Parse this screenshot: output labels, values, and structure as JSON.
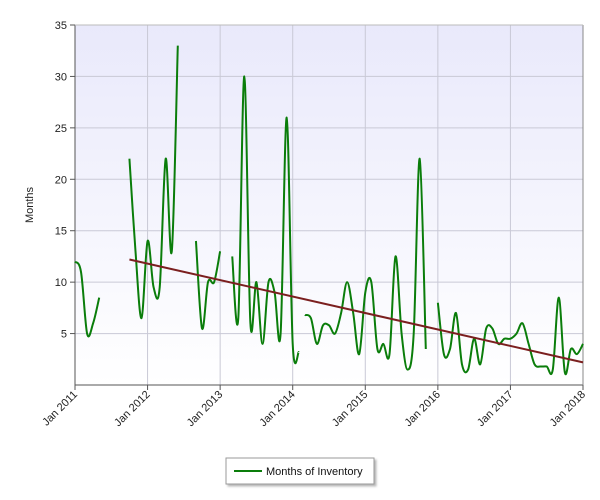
{
  "chart_data": {
    "type": "line",
    "title": "",
    "xlabel": "",
    "ylabel": "Months",
    "ylim": [
      0,
      35
    ],
    "yticks": [
      5,
      10,
      15,
      20,
      25,
      30,
      35
    ],
    "xlim": [
      "2011-01",
      "2018-01"
    ],
    "xticks": [
      "Jan 2011",
      "Jan 2012",
      "Jan 2013",
      "Jan 2014",
      "Jan 2015",
      "Jan 2016",
      "Jan 2017",
      "Jan 2018"
    ],
    "grid": true,
    "legend_position": "bottom-center",
    "colors": {
      "series": "#0a7d0a",
      "trend": "#7b1f1f",
      "plot_bg_top": "#e9e9fb",
      "plot_bg_bottom": "#ffffff",
      "grid": "#c9c9d6"
    },
    "series": [
      {
        "name": "Months of Inventory",
        "color": "#0a7d0a",
        "points": [
          [
            "2011-01",
            12
          ],
          [
            "2011-02",
            11
          ],
          [
            "2011-03",
            5
          ],
          [
            "2011-04",
            6
          ],
          [
            "2011-05",
            8.5
          ],
          null,
          [
            "2011-10",
            22
          ],
          [
            "2011-11",
            13
          ],
          [
            "2011-12",
            6.5
          ],
          [
            "2012-01",
            14
          ],
          [
            "2012-02",
            9.5
          ],
          [
            "2012-03",
            9.5
          ],
          [
            "2012-04",
            22
          ],
          [
            "2012-05",
            13
          ],
          [
            "2012-06",
            33
          ],
          null,
          [
            "2012-09",
            14
          ],
          [
            "2012-10",
            5.5
          ],
          [
            "2012-11",
            10
          ],
          [
            "2012-12",
            10
          ],
          [
            "2013-01",
            13
          ],
          null,
          [
            "2013-03",
            12.5
          ],
          [
            "2013-04",
            6.5
          ],
          [
            "2013-05",
            30
          ],
          [
            "2013-06",
            6
          ],
          [
            "2013-07",
            10
          ],
          [
            "2013-08",
            4
          ],
          [
            "2013-09",
            10
          ],
          [
            "2013-10",
            9
          ],
          [
            "2013-11",
            5
          ],
          [
            "2013-12",
            26
          ],
          [
            "2014-01",
            4
          ],
          [
            "2014-02",
            3.2
          ],
          null,
          [
            "2014-03",
            6.8
          ],
          [
            "2014-04",
            6.5
          ],
          [
            "2014-05",
            4
          ],
          [
            "2014-06",
            5.8
          ],
          [
            "2014-07",
            5.8
          ],
          [
            "2014-08",
            5
          ],
          [
            "2014-09",
            7
          ],
          [
            "2014-10",
            10
          ],
          [
            "2014-11",
            7
          ],
          [
            "2014-12",
            3
          ],
          [
            "2015-01",
            9
          ],
          [
            "2015-02",
            10
          ],
          [
            "2015-03",
            3.5
          ],
          [
            "2015-04",
            4
          ],
          [
            "2015-05",
            3
          ],
          [
            "2015-06",
            12.5
          ],
          [
            "2015-07",
            5
          ],
          [
            "2015-08",
            1.5
          ],
          [
            "2015-09",
            5
          ],
          [
            "2015-10",
            22
          ],
          [
            "2015-11",
            3.5
          ],
          null,
          [
            "2016-01",
            8
          ],
          [
            "2016-02",
            3
          ],
          [
            "2016-03",
            3.5
          ],
          [
            "2016-04",
            7
          ],
          [
            "2016-05",
            2
          ],
          [
            "2016-06",
            1.5
          ],
          [
            "2016-07",
            4.5
          ],
          [
            "2016-08",
            2
          ],
          [
            "2016-09",
            5.5
          ],
          [
            "2016-10",
            5.5
          ],
          [
            "2016-11",
            4
          ],
          [
            "2016-12",
            4.5
          ],
          [
            "2017-01",
            4.5
          ],
          [
            "2017-02",
            5
          ],
          [
            "2017-03",
            6
          ],
          [
            "2017-04",
            4
          ],
          [
            "2017-05",
            2
          ],
          [
            "2017-06",
            1.8
          ],
          [
            "2017-07",
            1.8
          ],
          [
            "2017-08",
            1.5
          ],
          [
            "2017-09",
            8.5
          ],
          [
            "2017-10",
            1.2
          ],
          [
            "2017-11",
            3.5
          ],
          [
            "2017-12",
            3
          ],
          [
            "2018-01",
            4
          ]
        ]
      },
      {
        "role": "trend line",
        "color": "#7b1f1f",
        "points": [
          [
            "2011-10",
            12.2
          ],
          [
            "2018-01",
            2.2
          ]
        ]
      }
    ],
    "legend": [
      "Months of Inventory"
    ]
  }
}
